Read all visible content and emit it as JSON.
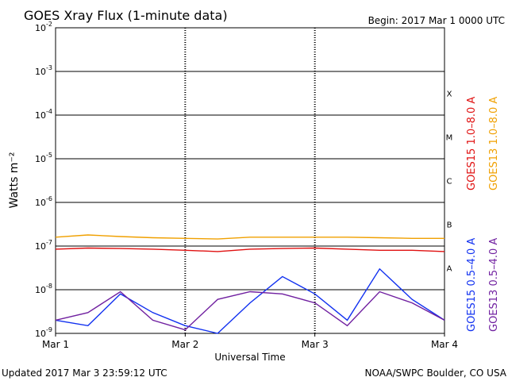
{
  "chart_data": {
    "type": "line",
    "title": "GOES Xray Flux (1-minute data)",
    "begin_label": "Begin:  2017 Mar 1 0000 UTC",
    "xlabel": "Universal Time",
    "ylabel": "Watts m⁻²",
    "y_scale": "log",
    "ylim": [
      1e-09,
      0.01
    ],
    "y_ticks": [
      {
        "mantissa": "10",
        "exp": "-9",
        "value": 1e-09
      },
      {
        "mantissa": "10",
        "exp": "-8",
        "value": 1e-08
      },
      {
        "mantissa": "10",
        "exp": "-7",
        "value": 1e-07
      },
      {
        "mantissa": "10",
        "exp": "-6",
        "value": 1e-06
      },
      {
        "mantissa": "10",
        "exp": "-5",
        "value": 1e-05
      },
      {
        "mantissa": "10",
        "exp": "-4",
        "value": 0.0001
      },
      {
        "mantissa": "10",
        "exp": "-3",
        "value": 0.001
      },
      {
        "mantissa": "10",
        "exp": "-2",
        "value": 0.01
      }
    ],
    "x_ticks": [
      "Mar 1",
      "Mar 2",
      "Mar 3",
      "Mar 4"
    ],
    "xlim": [
      "2017-03-01 00:00",
      "2017-03-04 00:00"
    ],
    "flare_classes": [
      {
        "label": "A",
        "value": 3.16e-08
      },
      {
        "label": "B",
        "value": 3.16e-07
      },
      {
        "label": "C",
        "value": 3.16e-06
      },
      {
        "label": "M",
        "value": 3.16e-05
      },
      {
        "label": "X",
        "value": 0.000316
      }
    ],
    "series": [
      {
        "name": "GOES15 1.0–8.0 A",
        "color": "#e01010",
        "x": [
          "2017-03-01 00:00",
          "2017-03-01 06:00",
          "2017-03-01 12:00",
          "2017-03-01 18:00",
          "2017-03-02 00:00",
          "2017-03-02 06:00",
          "2017-03-02 12:00",
          "2017-03-02 18:00",
          "2017-03-03 00:00",
          "2017-03-03 06:00",
          "2017-03-03 12:00",
          "2017-03-03 18:00",
          "2017-03-04 00:00"
        ],
        "values": [
          8.5e-08,
          9e-08,
          8.8e-08,
          8.5e-08,
          8e-08,
          7.5e-08,
          8.5e-08,
          8.8e-08,
          9e-08,
          8.5e-08,
          8e-08,
          8e-08,
          7.5e-08
        ]
      },
      {
        "name": "GOES13 1.0–8.0 A",
        "color": "#f0a000",
        "x": [
          "2017-03-01 00:00",
          "2017-03-01 06:00",
          "2017-03-01 12:00",
          "2017-03-01 18:00",
          "2017-03-02 00:00",
          "2017-03-02 06:00",
          "2017-03-02 12:00",
          "2017-03-02 18:00",
          "2017-03-03 00:00",
          "2017-03-03 06:00",
          "2017-03-03 12:00",
          "2017-03-03 18:00",
          "2017-03-04 00:00"
        ],
        "values": [
          1.6e-07,
          1.8e-07,
          1.65e-07,
          1.55e-07,
          1.5e-07,
          1.45e-07,
          1.6e-07,
          1.6e-07,
          1.6e-07,
          1.6e-07,
          1.55e-07,
          1.5e-07,
          1.5e-07
        ]
      },
      {
        "name": "GOES15 0.5–4.0 A",
        "color": "#1030f0",
        "x": [
          "2017-03-01 00:00",
          "2017-03-01 06:00",
          "2017-03-01 12:00",
          "2017-03-01 18:00",
          "2017-03-02 00:00",
          "2017-03-02 06:00",
          "2017-03-02 12:00",
          "2017-03-02 18:00",
          "2017-03-03 00:00",
          "2017-03-03 06:00",
          "2017-03-03 12:00",
          "2017-03-03 18:00",
          "2017-03-04 00:00"
        ],
        "values": [
          2e-09,
          1.5e-09,
          8e-09,
          3e-09,
          1.5e-09,
          1e-09,
          5e-09,
          2e-08,
          8e-09,
          2e-09,
          3e-08,
          6e-09,
          2e-09
        ]
      },
      {
        "name": "GOES13 0.5–4.0 A",
        "color": "#7020a0",
        "x": [
          "2017-03-01 00:00",
          "2017-03-01 06:00",
          "2017-03-01 12:00",
          "2017-03-01 18:00",
          "2017-03-02 00:00",
          "2017-03-02 06:00",
          "2017-03-02 12:00",
          "2017-03-02 18:00",
          "2017-03-03 00:00",
          "2017-03-03 06:00",
          "2017-03-03 12:00",
          "2017-03-03 18:00",
          "2017-03-04 00:00"
        ],
        "values": [
          2e-09,
          3e-09,
          9e-09,
          2e-09,
          1.2e-09,
          6e-09,
          9e-09,
          8e-09,
          5e-09,
          1.5e-09,
          9e-09,
          5e-09,
          2e-09
        ]
      }
    ],
    "legend_position": "right"
  },
  "footer": {
    "updated": "Updated 2017 Mar  3 23:59:12 UTC",
    "credit": "NOAA/SWPC Boulder, CO USA"
  }
}
